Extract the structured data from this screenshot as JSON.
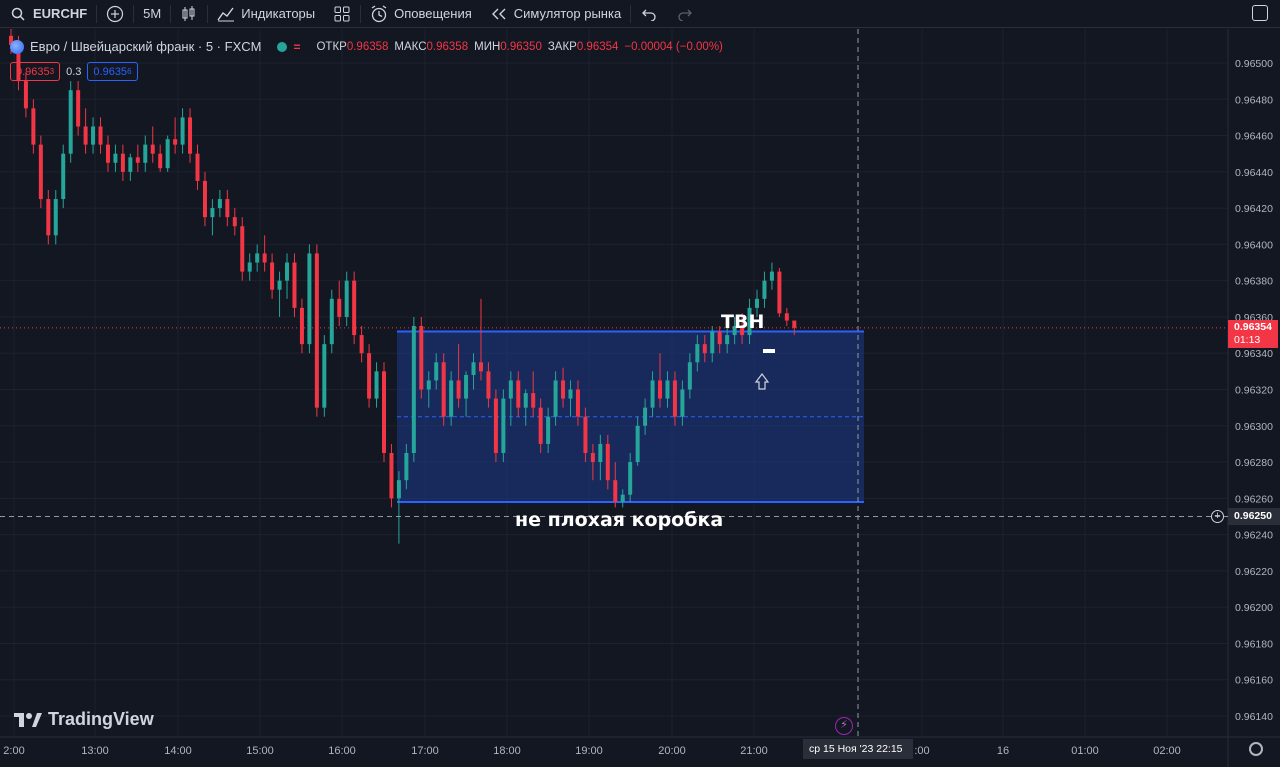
{
  "toolbar": {
    "symbol": "EURCHF",
    "interval": "5M",
    "indicators": "Индикаторы",
    "alerts": "Оповещения",
    "replay": "Симулятор рынка",
    "icons": [
      "search-icon",
      "add-symbol-icon",
      "candles-icon",
      "indicators-icon",
      "templates-icon",
      "alert-clock-icon",
      "replay-icon",
      "undo-icon",
      "redo-icon",
      "layout-icon"
    ]
  },
  "legend": {
    "title": "Евро / Швейцарский франк · 5 · FXCM",
    "open_label": "ОТКР",
    "open": "0.96358",
    "high_label": "МАКС",
    "high": "0.96358",
    "low_label": "МИН",
    "low": "0.96350",
    "close_label": "ЗАКР",
    "close": "0.96354",
    "change": "−0.00004 (−0.00%)"
  },
  "trade": {
    "sell": "0.9635",
    "sell_small": "3",
    "spread": "0.3",
    "buy": "0.9635",
    "buy_small": "6"
  },
  "annotations": {
    "tvn": "ТВН",
    "box": "не плохая коробка"
  },
  "branding": "TradingView",
  "price_axis": {
    "labels": [
      "0.96500",
      "0.96480",
      "0.96460",
      "0.96440",
      "0.96420",
      "0.96400",
      "0.96380",
      "0.96360",
      "0.96340",
      "0.96320",
      "0.96300",
      "0.96280",
      "0.96260",
      "0.96240",
      "0.96220",
      "0.96200",
      "0.96180",
      "0.96160",
      "0.96140"
    ],
    "last_price": "0.96354",
    "countdown": "01:13",
    "crosshair_price": "0.96250"
  },
  "time_axis": {
    "labels": [
      "2:00",
      "13:00",
      "14:00",
      "15:00",
      "16:00",
      "17:00",
      "18:00",
      "19:00",
      "20:00",
      "21:00",
      ":00",
      "16",
      "01:00",
      "02:00"
    ],
    "crosshair_time": "ср 15 Ноя '23   22:15"
  },
  "colors": {
    "background": "#131722",
    "up": "#26a69a",
    "down": "#f23645",
    "box_fill": "#1e3a8a",
    "box_border": "#2962ff"
  },
  "chart_data": {
    "type": "candlestick",
    "symbol": "EURCHF",
    "interval_minutes": 5,
    "ylim": [
      0.9613,
      0.9652
    ],
    "box": {
      "top": 0.96352,
      "bottom": 0.96258,
      "mid": 0.96305
    },
    "candles": [
      [
        0.96515,
        0.9652,
        0.96505,
        0.9651
      ],
      [
        0.9651,
        0.96515,
        0.96485,
        0.9649
      ],
      [
        0.9649,
        0.96495,
        0.9647,
        0.96475
      ],
      [
        0.96475,
        0.9648,
        0.9645,
        0.96455
      ],
      [
        0.96455,
        0.9646,
        0.9642,
        0.96425
      ],
      [
        0.96425,
        0.9643,
        0.964,
        0.96405
      ],
      [
        0.96405,
        0.9643,
        0.964,
        0.96425
      ],
      [
        0.96425,
        0.96455,
        0.9642,
        0.9645
      ],
      [
        0.9645,
        0.9649,
        0.96445,
        0.96485
      ],
      [
        0.96485,
        0.9649,
        0.9646,
        0.96465
      ],
      [
        0.96465,
        0.96475,
        0.9645,
        0.96455
      ],
      [
        0.96455,
        0.9647,
        0.9645,
        0.96465
      ],
      [
        0.96465,
        0.9647,
        0.9645,
        0.96455
      ],
      [
        0.96455,
        0.9646,
        0.9644,
        0.96445
      ],
      [
        0.96445,
        0.96455,
        0.9644,
        0.9645
      ],
      [
        0.9645,
        0.96455,
        0.96435,
        0.9644
      ],
      [
        0.9644,
        0.9645,
        0.96435,
        0.96448
      ],
      [
        0.96448,
        0.96455,
        0.9644,
        0.96445
      ],
      [
        0.96445,
        0.9646,
        0.9644,
        0.96455
      ],
      [
        0.96455,
        0.96465,
        0.96445,
        0.9645
      ],
      [
        0.9645,
        0.96455,
        0.9644,
        0.96442
      ],
      [
        0.96442,
        0.9646,
        0.9644,
        0.96458
      ],
      [
        0.96458,
        0.9647,
        0.9645,
        0.96455
      ],
      [
        0.96455,
        0.96475,
        0.9645,
        0.9647
      ],
      [
        0.9647,
        0.96475,
        0.96445,
        0.9645
      ],
      [
        0.9645,
        0.96455,
        0.9643,
        0.96435
      ],
      [
        0.96435,
        0.9644,
        0.9641,
        0.96415
      ],
      [
        0.96415,
        0.96425,
        0.96405,
        0.9642
      ],
      [
        0.9642,
        0.9643,
        0.96415,
        0.96425
      ],
      [
        0.96425,
        0.9643,
        0.9641,
        0.96415
      ],
      [
        0.96415,
        0.9642,
        0.96405,
        0.9641
      ],
      [
        0.9641,
        0.96415,
        0.9638,
        0.96385
      ],
      [
        0.96385,
        0.96395,
        0.9638,
        0.9639
      ],
      [
        0.9639,
        0.964,
        0.96385,
        0.96395
      ],
      [
        0.96395,
        0.96405,
        0.96385,
        0.9639
      ],
      [
        0.9639,
        0.96395,
        0.9637,
        0.96375
      ],
      [
        0.96375,
        0.96385,
        0.9636,
        0.9638
      ],
      [
        0.9638,
        0.96395,
        0.9637,
        0.9639
      ],
      [
        0.9639,
        0.96395,
        0.9636,
        0.96365
      ],
      [
        0.96365,
        0.9637,
        0.9634,
        0.96345
      ],
      [
        0.96345,
        0.964,
        0.9634,
        0.96395
      ],
      [
        0.96395,
        0.964,
        0.96305,
        0.9631
      ],
      [
        0.9631,
        0.9635,
        0.96305,
        0.96345
      ],
      [
        0.96345,
        0.96375,
        0.9634,
        0.9637
      ],
      [
        0.9637,
        0.9638,
        0.96355,
        0.9636
      ],
      [
        0.9636,
        0.96385,
        0.96355,
        0.9638
      ],
      [
        0.9638,
        0.96385,
        0.96345,
        0.9635
      ],
      [
        0.9635,
        0.96355,
        0.96335,
        0.9634
      ],
      [
        0.9634,
        0.96345,
        0.9631,
        0.96315
      ],
      [
        0.96315,
        0.96335,
        0.9631,
        0.9633
      ],
      [
        0.9633,
        0.96335,
        0.9628,
        0.96285
      ],
      [
        0.96285,
        0.9629,
        0.96255,
        0.9626
      ],
      [
        0.9626,
        0.96275,
        0.96235,
        0.9627
      ],
      [
        0.9627,
        0.9629,
        0.96265,
        0.96285
      ],
      [
        0.96285,
        0.9636,
        0.9628,
        0.96355
      ],
      [
        0.96355,
        0.9636,
        0.96315,
        0.9632
      ],
      [
        0.9632,
        0.9633,
        0.9631,
        0.96325
      ],
      [
        0.96325,
        0.9634,
        0.9632,
        0.96335
      ],
      [
        0.96335,
        0.9634,
        0.963,
        0.96305
      ],
      [
        0.96305,
        0.9633,
        0.963,
        0.96325
      ],
      [
        0.96325,
        0.96345,
        0.9631,
        0.96315
      ],
      [
        0.96315,
        0.9633,
        0.96305,
        0.96328
      ],
      [
        0.96328,
        0.9634,
        0.9632,
        0.96335
      ],
      [
        0.96335,
        0.9637,
        0.96325,
        0.9633
      ],
      [
        0.9633,
        0.96335,
        0.9631,
        0.96315
      ],
      [
        0.96315,
        0.9632,
        0.9628,
        0.96285
      ],
      [
        0.96285,
        0.9632,
        0.9628,
        0.96315
      ],
      [
        0.96315,
        0.9633,
        0.963,
        0.96325
      ],
      [
        0.96325,
        0.9633,
        0.96305,
        0.9631
      ],
      [
        0.9631,
        0.9632,
        0.963,
        0.96318
      ],
      [
        0.96318,
        0.9633,
        0.96305,
        0.9631
      ],
      [
        0.9631,
        0.96315,
        0.96285,
        0.9629
      ],
      [
        0.9629,
        0.9631,
        0.96285,
        0.96305
      ],
      [
        0.96305,
        0.9633,
        0.963,
        0.96325
      ],
      [
        0.96325,
        0.96332,
        0.9631,
        0.96315
      ],
      [
        0.96315,
        0.96325,
        0.96305,
        0.9632
      ],
      [
        0.9632,
        0.96325,
        0.963,
        0.96305
      ],
      [
        0.96305,
        0.9631,
        0.9628,
        0.96285
      ],
      [
        0.96285,
        0.9629,
        0.9627,
        0.9628
      ],
      [
        0.9628,
        0.96295,
        0.9627,
        0.9629
      ],
      [
        0.9629,
        0.96295,
        0.96265,
        0.9627
      ],
      [
        0.9627,
        0.9628,
        0.96255,
        0.96258
      ],
      [
        0.96258,
        0.96265,
        0.96255,
        0.96262
      ],
      [
        0.96262,
        0.96285,
        0.96258,
        0.9628
      ],
      [
        0.9628,
        0.96305,
        0.96278,
        0.963
      ],
      [
        0.963,
        0.96315,
        0.96295,
        0.9631
      ],
      [
        0.9631,
        0.9633,
        0.96305,
        0.96325
      ],
      [
        0.96325,
        0.9634,
        0.9631,
        0.96315
      ],
      [
        0.96315,
        0.9633,
        0.9631,
        0.96325
      ],
      [
        0.96325,
        0.9633,
        0.963,
        0.96305
      ],
      [
        0.96305,
        0.96325,
        0.963,
        0.9632
      ],
      [
        0.9632,
        0.9634,
        0.96315,
        0.96335
      ],
      [
        0.96335,
        0.9635,
        0.9633,
        0.96345
      ],
      [
        0.96345,
        0.9635,
        0.96335,
        0.9634
      ],
      [
        0.9634,
        0.96355,
        0.96335,
        0.96352
      ],
      [
        0.96352,
        0.96355,
        0.9634,
        0.96345
      ],
      [
        0.96345,
        0.96355,
        0.9634,
        0.9635
      ],
      [
        0.9635,
        0.9636,
        0.96345,
        0.96355
      ],
      [
        0.96355,
        0.96362,
        0.96345,
        0.9635
      ],
      [
        0.9635,
        0.9637,
        0.96345,
        0.96365
      ],
      [
        0.96365,
        0.96375,
        0.9636,
        0.9637
      ],
      [
        0.9637,
        0.96385,
        0.96365,
        0.9638
      ],
      [
        0.9638,
        0.9639,
        0.96375,
        0.96385
      ],
      [
        0.96385,
        0.96387,
        0.9636,
        0.96362
      ],
      [
        0.96362,
        0.96365,
        0.96355,
        0.96358
      ],
      [
        0.96358,
        0.96358,
        0.9635,
        0.96354
      ]
    ]
  }
}
